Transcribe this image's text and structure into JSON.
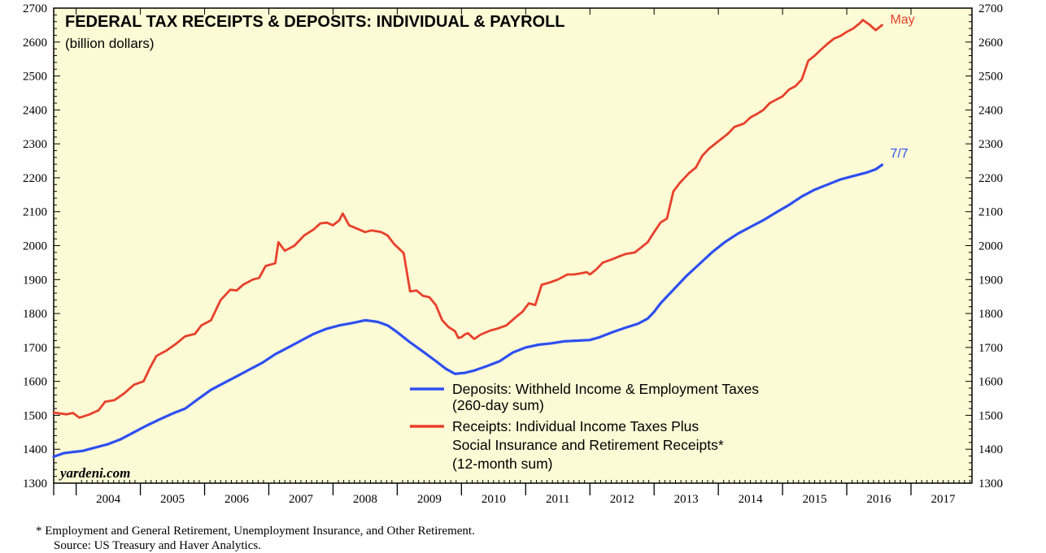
{
  "chart_data": {
    "type": "line",
    "title": "FEDERAL TAX RECEIPTS & DEPOSITS: INDIVIDUAL & PAYROLL",
    "subtitle": "(billion dollars)",
    "ylim": [
      1300,
      2700
    ],
    "yticks": [
      1300,
      1400,
      1500,
      1600,
      1700,
      1800,
      1900,
      2000,
      2100,
      2200,
      2300,
      2400,
      2500,
      2600,
      2700
    ],
    "xlim": [
      2003.65,
      2017.95
    ],
    "xlabels": [
      "2004",
      "2005",
      "2006",
      "2007",
      "2008",
      "2009",
      "2010",
      "2011",
      "2012",
      "2013",
      "2014",
      "2015",
      "2016",
      "2017"
    ],
    "watermark": "yardeni.com",
    "legend": {
      "position": "bottom-center",
      "entries": [
        {
          "name": "Deposits: Withheld Income & Employment Taxes",
          "detail": "(260-day sum)",
          "color": "#2e4ff0"
        },
        {
          "name": "Receipts: Individual Income Taxes Plus",
          "line2": "Social Insurance and Retirement Receipts*",
          "detail": "(12-month sum)",
          "color": "#e8402a"
        }
      ]
    },
    "series": [
      {
        "name": "Receipts",
        "end_label": "May",
        "color": "#e8402a",
        "points": [
          [
            2003.65,
            1508
          ],
          [
            2003.85,
            1503
          ],
          [
            2003.95,
            1507
          ],
          [
            2004.05,
            1493
          ],
          [
            2004.2,
            1502
          ],
          [
            2004.35,
            1515
          ],
          [
            2004.45,
            1540
          ],
          [
            2004.6,
            1545
          ],
          [
            2004.75,
            1565
          ],
          [
            2004.9,
            1590
          ],
          [
            2005.05,
            1600
          ],
          [
            2005.15,
            1640
          ],
          [
            2005.25,
            1675
          ],
          [
            2005.4,
            1690
          ],
          [
            2005.55,
            1710
          ],
          [
            2005.7,
            1733
          ],
          [
            2005.85,
            1740
          ],
          [
            2005.95,
            1765
          ],
          [
            2006.1,
            1780
          ],
          [
            2006.25,
            1840
          ],
          [
            2006.4,
            1870
          ],
          [
            2006.5,
            1868
          ],
          [
            2006.6,
            1885
          ],
          [
            2006.75,
            1900
          ],
          [
            2006.85,
            1905
          ],
          [
            2006.95,
            1940
          ],
          [
            2007.1,
            1948
          ],
          [
            2007.15,
            2010
          ],
          [
            2007.25,
            1985
          ],
          [
            2007.4,
            2000
          ],
          [
            2007.55,
            2030
          ],
          [
            2007.7,
            2048
          ],
          [
            2007.8,
            2065
          ],
          [
            2007.9,
            2068
          ],
          [
            2008.0,
            2060
          ],
          [
            2008.1,
            2075
          ],
          [
            2008.15,
            2095
          ],
          [
            2008.25,
            2060
          ],
          [
            2008.4,
            2048
          ],
          [
            2008.5,
            2040
          ],
          [
            2008.6,
            2045
          ],
          [
            2008.75,
            2040
          ],
          [
            2008.85,
            2030
          ],
          [
            2008.95,
            2005
          ],
          [
            2009.1,
            1978
          ],
          [
            2009.2,
            1865
          ],
          [
            2009.3,
            1868
          ],
          [
            2009.4,
            1852
          ],
          [
            2009.5,
            1848
          ],
          [
            2009.6,
            1825
          ],
          [
            2009.7,
            1780
          ],
          [
            2009.8,
            1760
          ],
          [
            2009.9,
            1748
          ],
          [
            2009.95,
            1728
          ],
          [
            2010.0,
            1730
          ],
          [
            2010.05,
            1738
          ],
          [
            2010.1,
            1742
          ],
          [
            2010.2,
            1725
          ],
          [
            2010.3,
            1738
          ],
          [
            2010.45,
            1750
          ],
          [
            2010.55,
            1755
          ],
          [
            2010.7,
            1765
          ],
          [
            2010.85,
            1790
          ],
          [
            2010.95,
            1805
          ],
          [
            2011.05,
            1830
          ],
          [
            2011.15,
            1825
          ],
          [
            2011.25,
            1885
          ],
          [
            2011.35,
            1890
          ],
          [
            2011.5,
            1900
          ],
          [
            2011.65,
            1915
          ],
          [
            2011.75,
            1915
          ],
          [
            2011.85,
            1918
          ],
          [
            2011.95,
            1922
          ],
          [
            2012.0,
            1915
          ],
          [
            2012.1,
            1930
          ],
          [
            2012.2,
            1950
          ],
          [
            2012.35,
            1960
          ],
          [
            2012.45,
            1968
          ],
          [
            2012.55,
            1975
          ],
          [
            2012.7,
            1980
          ],
          [
            2012.8,
            1995
          ],
          [
            2012.9,
            2010
          ],
          [
            2013.0,
            2040
          ],
          [
            2013.1,
            2068
          ],
          [
            2013.2,
            2080
          ],
          [
            2013.3,
            2160
          ],
          [
            2013.4,
            2185
          ],
          [
            2013.55,
            2215
          ],
          [
            2013.65,
            2230
          ],
          [
            2013.75,
            2265
          ],
          [
            2013.85,
            2285
          ],
          [
            2013.95,
            2300
          ],
          [
            2014.05,
            2315
          ],
          [
            2014.15,
            2330
          ],
          [
            2014.25,
            2350
          ],
          [
            2014.4,
            2360
          ],
          [
            2014.5,
            2378
          ],
          [
            2014.6,
            2388
          ],
          [
            2014.7,
            2400
          ],
          [
            2014.8,
            2420
          ],
          [
            2014.9,
            2430
          ],
          [
            2015.0,
            2440
          ],
          [
            2015.1,
            2460
          ],
          [
            2015.2,
            2470
          ],
          [
            2015.3,
            2490
          ],
          [
            2015.4,
            2545
          ],
          [
            2015.5,
            2560
          ],
          [
            2015.6,
            2578
          ],
          [
            2015.7,
            2595
          ],
          [
            2015.8,
            2610
          ],
          [
            2015.9,
            2618
          ],
          [
            2016.0,
            2630
          ],
          [
            2016.1,
            2640
          ],
          [
            2016.2,
            2655
          ],
          [
            2016.25,
            2665
          ],
          [
            2016.35,
            2652
          ],
          [
            2016.45,
            2635
          ],
          [
            2016.55,
            2650
          ]
        ]
      },
      {
        "name": "Deposits",
        "end_label": "7/7",
        "color": "#2e4ff0",
        "points": [
          [
            2003.65,
            1378
          ],
          [
            2003.8,
            1388
          ],
          [
            2003.95,
            1392
          ],
          [
            2004.1,
            1395
          ],
          [
            2004.3,
            1405
          ],
          [
            2004.5,
            1415
          ],
          [
            2004.7,
            1430
          ],
          [
            2004.9,
            1450
          ],
          [
            2005.1,
            1470
          ],
          [
            2005.3,
            1488
          ],
          [
            2005.5,
            1505
          ],
          [
            2005.7,
            1520
          ],
          [
            2005.9,
            1548
          ],
          [
            2006.1,
            1575
          ],
          [
            2006.3,
            1595
          ],
          [
            2006.5,
            1615
          ],
          [
            2006.7,
            1635
          ],
          [
            2006.9,
            1655
          ],
          [
            2007.1,
            1680
          ],
          [
            2007.3,
            1700
          ],
          [
            2007.5,
            1720
          ],
          [
            2007.7,
            1740
          ],
          [
            2007.9,
            1755
          ],
          [
            2008.1,
            1765
          ],
          [
            2008.3,
            1772
          ],
          [
            2008.5,
            1780
          ],
          [
            2008.6,
            1778
          ],
          [
            2008.7,
            1775
          ],
          [
            2008.85,
            1765
          ],
          [
            2009.0,
            1745
          ],
          [
            2009.2,
            1715
          ],
          [
            2009.4,
            1688
          ],
          [
            2009.6,
            1660
          ],
          [
            2009.75,
            1638
          ],
          [
            2009.9,
            1622
          ],
          [
            2010.05,
            1625
          ],
          [
            2010.2,
            1632
          ],
          [
            2010.4,
            1645
          ],
          [
            2010.6,
            1660
          ],
          [
            2010.8,
            1685
          ],
          [
            2011.0,
            1700
          ],
          [
            2011.2,
            1708
          ],
          [
            2011.4,
            1712
          ],
          [
            2011.6,
            1718
          ],
          [
            2011.8,
            1720
          ],
          [
            2012.0,
            1722
          ],
          [
            2012.15,
            1730
          ],
          [
            2012.35,
            1745
          ],
          [
            2012.55,
            1758
          ],
          [
            2012.75,
            1770
          ],
          [
            2012.9,
            1785
          ],
          [
            2013.0,
            1805
          ],
          [
            2013.1,
            1830
          ],
          [
            2013.3,
            1870
          ],
          [
            2013.5,
            1910
          ],
          [
            2013.7,
            1945
          ],
          [
            2013.9,
            1980
          ],
          [
            2014.1,
            2010
          ],
          [
            2014.3,
            2035
          ],
          [
            2014.5,
            2055
          ],
          [
            2014.7,
            2075
          ],
          [
            2014.9,
            2098
          ],
          [
            2015.1,
            2120
          ],
          [
            2015.3,
            2145
          ],
          [
            2015.5,
            2165
          ],
          [
            2015.7,
            2180
          ],
          [
            2015.9,
            2195
          ],
          [
            2016.1,
            2205
          ],
          [
            2016.3,
            2215
          ],
          [
            2016.45,
            2225
          ],
          [
            2016.55,
            2238
          ]
        ]
      }
    ]
  },
  "footnote": {
    "line1": "*  Employment and General Retirement, Unemployment Insurance, and Other Retirement.",
    "line2": "Source: US Treasury and Haver Analytics."
  }
}
